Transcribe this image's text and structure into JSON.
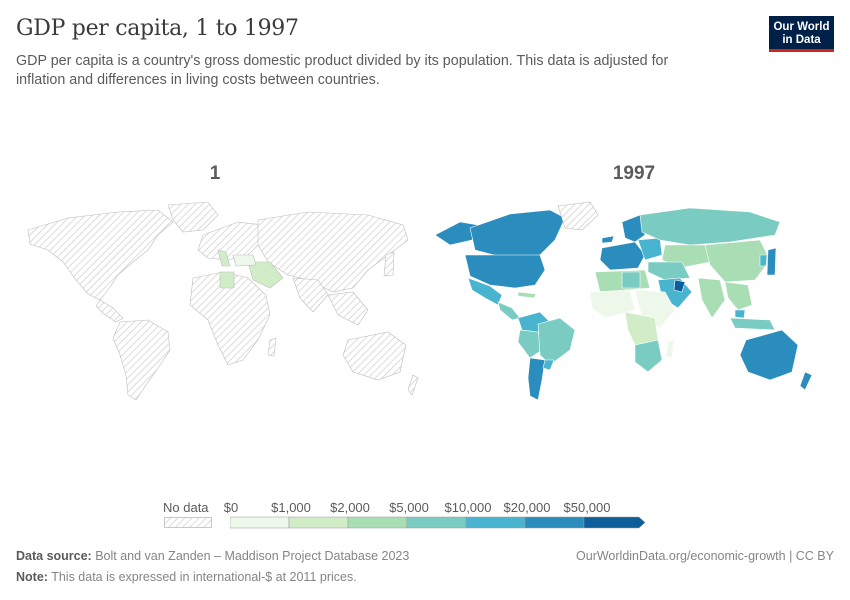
{
  "header": {
    "title": "GDP per capita, 1 to 1997",
    "subtitle": "GDP per capita is a country's gross domestic product divided by its population. This data is adjusted for inflation and differences in living costs between countries."
  },
  "logo": {
    "line1": "Our World",
    "line2": "in Data"
  },
  "panels": [
    {
      "label": "1"
    },
    {
      "label": "1997"
    }
  ],
  "legend": {
    "no_data_label": "No data",
    "ticks": [
      "$0",
      "$1,000",
      "$2,000",
      "$5,000",
      "$10,000",
      "$20,000",
      "$50,000"
    ],
    "colors": [
      "#eef8ea",
      "#d1edc8",
      "#a9ddb3",
      "#7accc2",
      "#48b4d0",
      "#2b8cbe",
      "#0c5f9b"
    ]
  },
  "footer": {
    "source_label": "Data source:",
    "source_text": "Bolt and van Zanden – Maddison Project Database 2023",
    "note_label": "Note:",
    "note_text": "This data is expressed in international-$ at 2011 prices.",
    "right_text": "OurWorldinData.org/economic-growth | CC BY"
  },
  "colors": {
    "no_data_hatch": "#d9d9d9",
    "title": "#3b3b3b",
    "logo_bg": "#002147",
    "logo_accent": "#ce261e"
  }
}
